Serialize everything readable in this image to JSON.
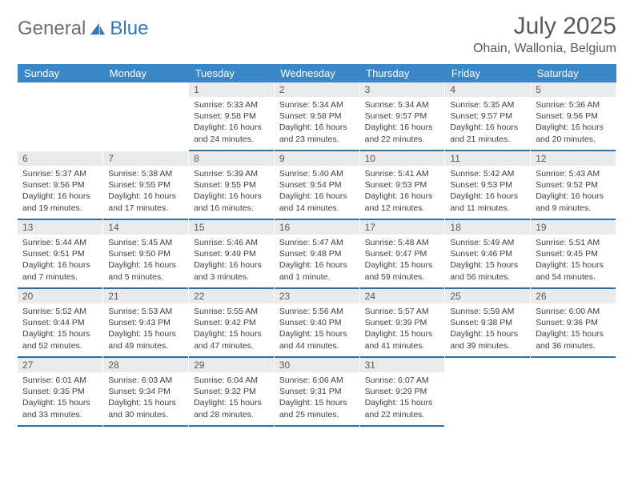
{
  "logo": {
    "general": "General",
    "blue": "Blue",
    "icon_color": "#2f78ba"
  },
  "header": {
    "month": "July 2025",
    "location": "Ohain, Wallonia, Belgium"
  },
  "theme": {
    "header_bg": "#3a87c8",
    "header_text": "#ffffff",
    "daynum_bg": "#e9eaec",
    "daynum_text": "#5a5a5a",
    "body_text": "#3f3f3f",
    "rule_color": "#2f6fa3",
    "title_color": "#595959"
  },
  "weekdays": [
    "Sunday",
    "Monday",
    "Tuesday",
    "Wednesday",
    "Thursday",
    "Friday",
    "Saturday"
  ],
  "layout": {
    "first_weekday_index": 2,
    "days_in_month": 31
  },
  "days": {
    "1": {
      "sunrise": "5:33 AM",
      "sunset": "9:58 PM",
      "daylight": "16 hours and 24 minutes."
    },
    "2": {
      "sunrise": "5:34 AM",
      "sunset": "9:58 PM",
      "daylight": "16 hours and 23 minutes."
    },
    "3": {
      "sunrise": "5:34 AM",
      "sunset": "9:57 PM",
      "daylight": "16 hours and 22 minutes."
    },
    "4": {
      "sunrise": "5:35 AM",
      "sunset": "9:57 PM",
      "daylight": "16 hours and 21 minutes."
    },
    "5": {
      "sunrise": "5:36 AM",
      "sunset": "9:56 PM",
      "daylight": "16 hours and 20 minutes."
    },
    "6": {
      "sunrise": "5:37 AM",
      "sunset": "9:56 PM",
      "daylight": "16 hours and 19 minutes."
    },
    "7": {
      "sunrise": "5:38 AM",
      "sunset": "9:55 PM",
      "daylight": "16 hours and 17 minutes."
    },
    "8": {
      "sunrise": "5:39 AM",
      "sunset": "9:55 PM",
      "daylight": "16 hours and 16 minutes."
    },
    "9": {
      "sunrise": "5:40 AM",
      "sunset": "9:54 PM",
      "daylight": "16 hours and 14 minutes."
    },
    "10": {
      "sunrise": "5:41 AM",
      "sunset": "9:53 PM",
      "daylight": "16 hours and 12 minutes."
    },
    "11": {
      "sunrise": "5:42 AM",
      "sunset": "9:53 PM",
      "daylight": "16 hours and 11 minutes."
    },
    "12": {
      "sunrise": "5:43 AM",
      "sunset": "9:52 PM",
      "daylight": "16 hours and 9 minutes."
    },
    "13": {
      "sunrise": "5:44 AM",
      "sunset": "9:51 PM",
      "daylight": "16 hours and 7 minutes."
    },
    "14": {
      "sunrise": "5:45 AM",
      "sunset": "9:50 PM",
      "daylight": "16 hours and 5 minutes."
    },
    "15": {
      "sunrise": "5:46 AM",
      "sunset": "9:49 PM",
      "daylight": "16 hours and 3 minutes."
    },
    "16": {
      "sunrise": "5:47 AM",
      "sunset": "9:48 PM",
      "daylight": "16 hours and 1 minute."
    },
    "17": {
      "sunrise": "5:48 AM",
      "sunset": "9:47 PM",
      "daylight": "15 hours and 59 minutes."
    },
    "18": {
      "sunrise": "5:49 AM",
      "sunset": "9:46 PM",
      "daylight": "15 hours and 56 minutes."
    },
    "19": {
      "sunrise": "5:51 AM",
      "sunset": "9:45 PM",
      "daylight": "15 hours and 54 minutes."
    },
    "20": {
      "sunrise": "5:52 AM",
      "sunset": "9:44 PM",
      "daylight": "15 hours and 52 minutes."
    },
    "21": {
      "sunrise": "5:53 AM",
      "sunset": "9:43 PM",
      "daylight": "15 hours and 49 minutes."
    },
    "22": {
      "sunrise": "5:55 AM",
      "sunset": "9:42 PM",
      "daylight": "15 hours and 47 minutes."
    },
    "23": {
      "sunrise": "5:56 AM",
      "sunset": "9:40 PM",
      "daylight": "15 hours and 44 minutes."
    },
    "24": {
      "sunrise": "5:57 AM",
      "sunset": "9:39 PM",
      "daylight": "15 hours and 41 minutes."
    },
    "25": {
      "sunrise": "5:59 AM",
      "sunset": "9:38 PM",
      "daylight": "15 hours and 39 minutes."
    },
    "26": {
      "sunrise": "6:00 AM",
      "sunset": "9:36 PM",
      "daylight": "15 hours and 36 minutes."
    },
    "27": {
      "sunrise": "6:01 AM",
      "sunset": "9:35 PM",
      "daylight": "15 hours and 33 minutes."
    },
    "28": {
      "sunrise": "6:03 AM",
      "sunset": "9:34 PM",
      "daylight": "15 hours and 30 minutes."
    },
    "29": {
      "sunrise": "6:04 AM",
      "sunset": "9:32 PM",
      "daylight": "15 hours and 28 minutes."
    },
    "30": {
      "sunrise": "6:06 AM",
      "sunset": "9:31 PM",
      "daylight": "15 hours and 25 minutes."
    },
    "31": {
      "sunrise": "6:07 AM",
      "sunset": "9:29 PM",
      "daylight": "15 hours and 22 minutes."
    }
  },
  "labels": {
    "sunrise": "Sunrise:",
    "sunset": "Sunset:",
    "daylight": "Daylight:"
  }
}
